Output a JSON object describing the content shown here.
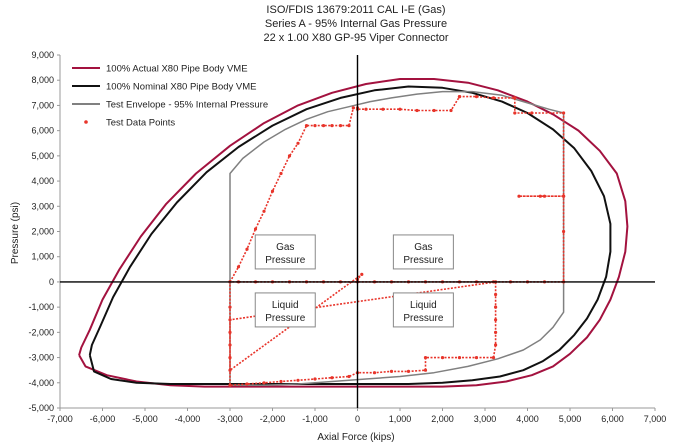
{
  "chart_data": {
    "type": "scatter",
    "title_lines": [
      "ISO/FDIS 13679:2011 CAL I-E (Gas)",
      "Series A - 95% Internal Gas Pressure",
      "22 x 1.00 X80 GP-95 Viper Connector"
    ],
    "xlabel": "Axial Force (kips)",
    "ylabel": "Pressure (psi)",
    "xlim": [
      -7000,
      7000
    ],
    "ylim": [
      -5000,
      9000
    ],
    "x_ticks": [
      -7000,
      -6000,
      -5000,
      -4000,
      -3000,
      -2000,
      -1000,
      0,
      1000,
      2000,
      3000,
      4000,
      5000,
      6000,
      7000
    ],
    "y_ticks": [
      -5000,
      -4000,
      -3000,
      -2000,
      -1000,
      0,
      1000,
      2000,
      3000,
      4000,
      5000,
      6000,
      7000,
      8000,
      9000
    ],
    "grid": false,
    "legend_position": "top-left",
    "region_labels": [
      {
        "text": [
          "Gas",
          "Pressure"
        ],
        "at": [
          -1700,
          1150
        ]
      },
      {
        "text": [
          "Gas",
          "Pressure"
        ],
        "at": [
          1550,
          1150
        ]
      },
      {
        "text": [
          "Liquid",
          "Pressure"
        ],
        "at": [
          -1700,
          -1150
        ]
      },
      {
        "text": [
          "Liquid",
          "Pressure"
        ],
        "at": [
          1550,
          -1150
        ]
      }
    ],
    "series": [
      {
        "name": "100% Actual X80 Pipe Body VME",
        "kind": "line",
        "color": "#a3123f",
        "x": [
          -6550,
          -6500,
          -6300,
          -6000,
          -5600,
          -5100,
          -4500,
          -3800,
          -3000,
          -2200,
          -1400,
          -600,
          200,
          1000,
          1800,
          2600,
          3300,
          4000,
          4600,
          5200,
          5700,
          6100,
          6300,
          6350,
          6300,
          6150,
          5950,
          5700,
          5400,
          5000,
          4600,
          4100,
          3500,
          2800,
          2000,
          1200,
          400,
          -400,
          -1200,
          -2000,
          -2800,
          -3600,
          -4400,
          -5200,
          -5900,
          -6400,
          -6550
        ],
        "y": [
          -2900,
          -2600,
          -1900,
          -700,
          500,
          1800,
          3100,
          4300,
          5400,
          6300,
          7000,
          7500,
          7850,
          8050,
          8050,
          7900,
          7600,
          7150,
          6650,
          6000,
          5200,
          4300,
          3200,
          2200,
          1200,
          200,
          -700,
          -1500,
          -2200,
          -2850,
          -3350,
          -3700,
          -3950,
          -4100,
          -4150,
          -4150,
          -4150,
          -4150,
          -4150,
          -4150,
          -4150,
          -4150,
          -4100,
          -3950,
          -3700,
          -3350,
          -2900
        ]
      },
      {
        "name": "100% Nominal X80 Pipe Body VME",
        "kind": "line",
        "color": "#111111",
        "x": [
          -6300,
          -6250,
          -6050,
          -5750,
          -5350,
          -4850,
          -4250,
          -3550,
          -2800,
          -2000,
          -1200,
          -400,
          400,
          1200,
          2000,
          2700,
          3400,
          4000,
          4600,
          5100,
          5500,
          5800,
          5950,
          5950,
          5850,
          5650,
          5400,
          5100,
          4750,
          4350,
          3900,
          3350,
          2700,
          2000,
          1200,
          400,
          -400,
          -1200,
          -2000,
          -2800,
          -3600,
          -4400,
          -5200,
          -5800,
          -6200,
          -6300
        ],
        "y": [
          -2900,
          -2500,
          -1750,
          -600,
          600,
          1900,
          3150,
          4350,
          5350,
          6200,
          6850,
          7300,
          7600,
          7750,
          7700,
          7500,
          7150,
          6700,
          6050,
          5300,
          4400,
          3400,
          2300,
          1200,
          200,
          -700,
          -1450,
          -2100,
          -2700,
          -3150,
          -3500,
          -3750,
          -3900,
          -4000,
          -4050,
          -4050,
          -4050,
          -4050,
          -4050,
          -4050,
          -4050,
          -4050,
          -4000,
          -3850,
          -3550,
          -2900
        ]
      },
      {
        "name": "Test Envelope - 95% Internal Pressure",
        "kind": "line",
        "color": "#808080",
        "x": [
          -3000,
          -3000,
          -2700,
          -2200,
          -1700,
          -1200,
          -700,
          -200,
          300,
          800,
          1400,
          2000,
          2700,
          3400,
          4000,
          4500,
          4850,
          4850,
          4850,
          4600,
          4300,
          3900,
          3300,
          2600,
          1800,
          1000,
          200,
          -600,
          -1400,
          -2200,
          -3000,
          -3000,
          -3000
        ],
        "y": [
          0,
          4300,
          4900,
          5550,
          6050,
          6450,
          6750,
          6950,
          7150,
          7300,
          7450,
          7550,
          7550,
          7400,
          7100,
          6850,
          6700,
          0,
          -1200,
          -1800,
          -2300,
          -2700,
          -3050,
          -3350,
          -3600,
          -3750,
          -3850,
          -3950,
          -4050,
          -4100,
          -4100,
          -4100,
          0
        ]
      },
      {
        "name": "Test Data Points",
        "kind": "points",
        "color": "#e8342a",
        "x": [
          -3000,
          -2800,
          -2600,
          -2400,
          -2200,
          -2000,
          -1800,
          -1600,
          -1400,
          -1200,
          -1000,
          -800,
          -600,
          -400,
          -200,
          -100,
          0,
          0,
          200,
          600,
          1000,
          1400,
          1800,
          2200,
          2400,
          2400,
          2800,
          3200,
          3700,
          3700,
          4100,
          4850,
          4850,
          4400,
          3800,
          4300,
          4850,
          4850,
          4850,
          4400,
          4000,
          3600,
          3200,
          2800,
          2400,
          2000,
          1600,
          1200,
          800,
          400,
          0,
          -400,
          -800,
          -1200,
          -1600,
          -2000,
          -2400,
          -2800,
          -3000,
          -3000,
          -3000,
          -3000,
          -3000,
          -2600,
          -2200,
          -1800,
          -1400,
          -1000,
          -600,
          -200,
          0,
          400,
          800,
          1200,
          1600,
          1600,
          2000,
          2400,
          2800,
          3200,
          3250,
          3250,
          3250,
          3250,
          3250,
          3250,
          -3000,
          -3000,
          -3000,
          100,
          0
        ],
        "y": [
          0,
          600,
          1300,
          2100,
          2800,
          3600,
          4300,
          5000,
          5500,
          6200,
          6200,
          6200,
          6200,
          6200,
          6200,
          6900,
          6900,
          6850,
          6850,
          6850,
          6850,
          6800,
          6800,
          6800,
          7350,
          7350,
          7350,
          7300,
          7300,
          6700,
          6700,
          6700,
          3400,
          3400,
          3400,
          3400,
          3400,
          2000,
          0,
          0,
          0,
          0,
          0,
          0,
          0,
          0,
          0,
          0,
          0,
          0,
          0,
          0,
          0,
          0,
          0,
          0,
          0,
          0,
          0,
          -1000,
          -2000,
          -3000,
          -4100,
          -4050,
          -4000,
          -3950,
          -3900,
          -3850,
          -3800,
          -3750,
          -3600,
          -3600,
          -3550,
          -3550,
          -3500,
          -3000,
          -3000,
          -3000,
          -3000,
          -3000,
          -2500,
          -2000,
          -1500,
          -1000,
          -500,
          0,
          -1500,
          -2500,
          -3500,
          300,
          100
        ]
      }
    ]
  }
}
